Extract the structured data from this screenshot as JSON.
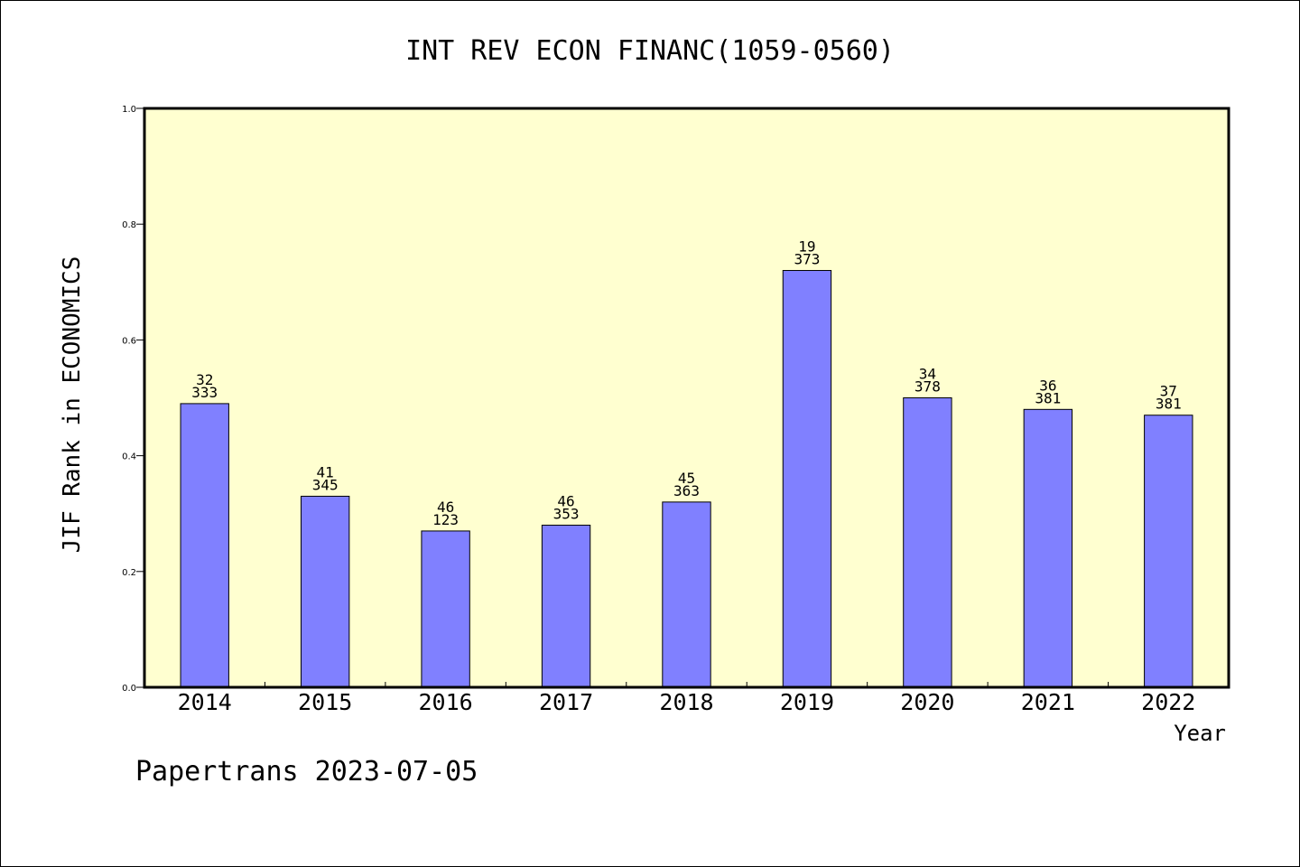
{
  "chart_data": {
    "type": "bar",
    "title": "INT REV ECON FINANC(1059-0560)",
    "ylabel": "JIF Rank in ECONOMICS",
    "xlabel": "Year",
    "ylim": [
      0.0,
      1.0
    ],
    "yticks": [
      "0.0",
      "0.2",
      "0.4",
      "0.6",
      "0.8",
      "1.0"
    ],
    "categories": [
      "2014",
      "2015",
      "2016",
      "2017",
      "2018",
      "2019",
      "2020",
      "2021",
      "2022"
    ],
    "values": [
      0.49,
      0.33,
      0.27,
      0.28,
      0.32,
      0.72,
      0.5,
      0.48,
      0.47
    ],
    "rank_labels": [
      "32",
      "41",
      "46",
      "46",
      "45",
      "19",
      "34",
      "36",
      "37"
    ],
    "total_labels": [
      "333",
      "345",
      "123",
      "353",
      "363",
      "373",
      "378",
      "381",
      "381"
    ],
    "bar_color": "#8080ff",
    "plot_background": "#ffffd0",
    "grid": false
  },
  "footer": "Papertrans 2023-07-05"
}
